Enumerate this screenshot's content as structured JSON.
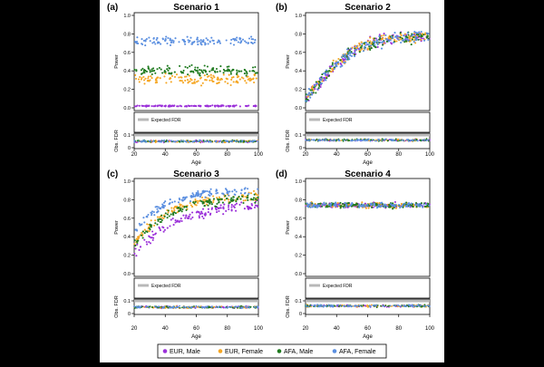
{
  "figure": {
    "legend": {
      "items": [
        {
          "label": "EUR, Male",
          "color": "#9b30d9"
        },
        {
          "label": "EUR, Female",
          "color": "#f5a623"
        },
        {
          "label": "AFA, Male",
          "color": "#1f7a1f"
        },
        {
          "label": "AFA, Female",
          "color": "#5b8fe0"
        }
      ]
    }
  },
  "chart_data": [
    {
      "type": "scatter",
      "panel_letter": "(a)",
      "title": "Scenario 1",
      "xlabel": "Age",
      "ylabel_top": "Power",
      "ylabel_bottom": "Obs. FDR",
      "expected_fdr_label": "Expected FDR",
      "expected_fdr": 0.1,
      "xlim": [
        20,
        100
      ],
      "ylim_top": [
        0,
        1
      ],
      "ylim_bottom": [
        0,
        0.1
      ],
      "xticks": [
        20,
        40,
        60,
        80,
        100
      ],
      "yticks_top": [
        0.0,
        0.2,
        0.4,
        0.6,
        0.8,
        1.0
      ],
      "yticks_bottom": [
        0,
        0.1
      ],
      "series": [
        {
          "name": "EUR, Male",
          "color": "#9b30d9",
          "power_trend": {
            "age": [
              20,
              100
            ],
            "value": [
              0.02,
              0.02
            ]
          },
          "fdr_mean": 0.05
        },
        {
          "name": "EUR, Female",
          "color": "#f5a623",
          "power_trend": {
            "age": [
              20,
              100
            ],
            "value": [
              0.31,
              0.31
            ]
          },
          "fdr_mean": 0.05
        },
        {
          "name": "AFA, Male",
          "color": "#1f7a1f",
          "power_trend": {
            "age": [
              20,
              100
            ],
            "value": [
              0.4,
              0.4
            ]
          },
          "fdr_mean": 0.05
        },
        {
          "name": "AFA, Female",
          "color": "#5b8fe0",
          "power_trend": {
            "age": [
              20,
              100
            ],
            "value": [
              0.72,
              0.72
            ]
          },
          "fdr_mean": 0.05
        }
      ]
    },
    {
      "type": "scatter",
      "panel_letter": "(b)",
      "title": "Scenario 2",
      "xlabel": "Age",
      "ylabel_top": "Power",
      "ylabel_bottom": "Obs. FDR",
      "expected_fdr_label": "Expected FDR",
      "expected_fdr": 0.1,
      "xlim": [
        20,
        100
      ],
      "ylim_top": [
        0,
        1
      ],
      "ylim_bottom": [
        0,
        0.1
      ],
      "xticks": [
        20,
        40,
        60,
        80,
        100
      ],
      "yticks_top": [
        0.0,
        0.2,
        0.4,
        0.6,
        0.8,
        1.0
      ],
      "yticks_bottom": [
        0,
        0.1
      ],
      "series": [
        {
          "name": "EUR, Male",
          "color": "#9b30d9",
          "power_trend": {
            "age": [
              20,
              30,
              40,
              50,
              60,
              70,
              80,
              90,
              100
            ],
            "value": [
              0.1,
              0.3,
              0.48,
              0.6,
              0.68,
              0.73,
              0.76,
              0.77,
              0.78
            ]
          },
          "fdr_mean": 0.06
        },
        {
          "name": "EUR, Female",
          "color": "#f5a623",
          "power_trend": {
            "age": [
              20,
              30,
              40,
              50,
              60,
              70,
              80,
              90,
              100
            ],
            "value": [
              0.1,
              0.3,
              0.48,
              0.6,
              0.68,
              0.73,
              0.76,
              0.77,
              0.78
            ]
          },
          "fdr_mean": 0.06
        },
        {
          "name": "AFA, Male",
          "color": "#1f7a1f",
          "power_trend": {
            "age": [
              20,
              30,
              40,
              50,
              60,
              70,
              80,
              90,
              100
            ],
            "value": [
              0.1,
              0.3,
              0.48,
              0.6,
              0.68,
              0.73,
              0.76,
              0.77,
              0.78
            ]
          },
          "fdr_mean": 0.06
        },
        {
          "name": "AFA, Female",
          "color": "#5b8fe0",
          "power_trend": {
            "age": [
              20,
              30,
              40,
              50,
              60,
              70,
              80,
              90,
              100
            ],
            "value": [
              0.1,
              0.3,
              0.48,
              0.6,
              0.68,
              0.73,
              0.76,
              0.77,
              0.78
            ]
          },
          "fdr_mean": 0.06
        }
      ]
    },
    {
      "type": "scatter",
      "panel_letter": "(c)",
      "title": "Scenario 3",
      "xlabel": "Age",
      "ylabel_top": "Power",
      "ylabel_bottom": "Obs. FDR",
      "expected_fdr_label": "Expected FDR",
      "expected_fdr": 0.1,
      "xlim": [
        20,
        100
      ],
      "ylim_top": [
        0,
        1
      ],
      "ylim_bottom": [
        0,
        0.1
      ],
      "xticks": [
        20,
        40,
        60,
        80,
        100
      ],
      "yticks_top": [
        0.0,
        0.2,
        0.4,
        0.6,
        0.8,
        1.0
      ],
      "yticks_bottom": [
        0,
        0.1
      ],
      "series": [
        {
          "name": "EUR, Male",
          "color": "#9b30d9",
          "power_trend": {
            "age": [
              20,
              30,
              40,
              50,
              60,
              70,
              80,
              90,
              100
            ],
            "value": [
              0.22,
              0.38,
              0.5,
              0.58,
              0.64,
              0.68,
              0.71,
              0.73,
              0.75
            ]
          },
          "fdr_mean": 0.05
        },
        {
          "name": "EUR, Female",
          "color": "#f5a623",
          "power_trend": {
            "age": [
              20,
              30,
              40,
              50,
              60,
              70,
              80,
              90,
              100
            ],
            "value": [
              0.33,
              0.52,
              0.64,
              0.72,
              0.77,
              0.8,
              0.82,
              0.83,
              0.84
            ]
          },
          "fdr_mean": 0.05
        },
        {
          "name": "AFA, Male",
          "color": "#1f7a1f",
          "power_trend": {
            "age": [
              20,
              30,
              40,
              50,
              60,
              70,
              80,
              90,
              100
            ],
            "value": [
              0.32,
              0.5,
              0.62,
              0.7,
              0.75,
              0.78,
              0.8,
              0.81,
              0.82
            ]
          },
          "fdr_mean": 0.05
        },
        {
          "name": "AFA, Female",
          "color": "#5b8fe0",
          "power_trend": {
            "age": [
              20,
              30,
              40,
              50,
              60,
              70,
              80,
              90,
              100
            ],
            "value": [
              0.45,
              0.64,
              0.75,
              0.81,
              0.85,
              0.87,
              0.89,
              0.9,
              0.91
            ]
          },
          "fdr_mean": 0.05
        }
      ]
    },
    {
      "type": "scatter",
      "panel_letter": "(d)",
      "title": "Scenario 4",
      "xlabel": "Age",
      "ylabel_top": "Power",
      "ylabel_bottom": "Obs. FDR",
      "expected_fdr_label": "Expected FDR",
      "expected_fdr": 0.1,
      "xlim": [
        20,
        100
      ],
      "ylim_top": [
        0,
        1
      ],
      "ylim_bottom": [
        0,
        0.1
      ],
      "xticks": [
        20,
        40,
        60,
        80,
        100
      ],
      "yticks_top": [
        0.0,
        0.2,
        0.4,
        0.6,
        0.8,
        1.0
      ],
      "yticks_bottom": [
        0,
        0.1
      ],
      "series": [
        {
          "name": "EUR, Male",
          "color": "#9b30d9",
          "power_trend": {
            "age": [
              20,
              100
            ],
            "value": [
              0.74,
              0.74
            ]
          },
          "fdr_mean": 0.06
        },
        {
          "name": "EUR, Female",
          "color": "#f5a623",
          "power_trend": {
            "age": [
              20,
              100
            ],
            "value": [
              0.74,
              0.74
            ]
          },
          "fdr_mean": 0.06
        },
        {
          "name": "AFA, Male",
          "color": "#1f7a1f",
          "power_trend": {
            "age": [
              20,
              100
            ],
            "value": [
              0.74,
              0.74
            ]
          },
          "fdr_mean": 0.06
        },
        {
          "name": "AFA, Female",
          "color": "#5b8fe0",
          "power_trend": {
            "age": [
              20,
              100
            ],
            "value": [
              0.74,
              0.74
            ]
          },
          "fdr_mean": 0.06
        }
      ]
    }
  ]
}
